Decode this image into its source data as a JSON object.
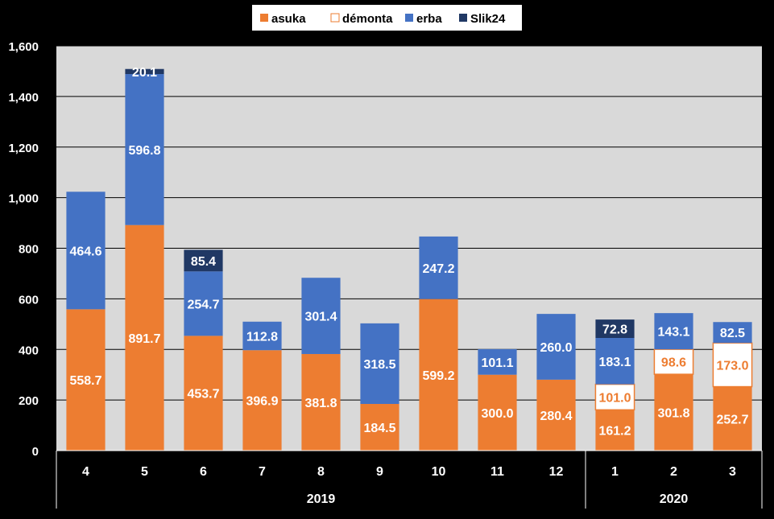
{
  "chart_data": {
    "type": "bar",
    "stacked": true,
    "categories": [
      "4",
      "5",
      "6",
      "7",
      "8",
      "9",
      "10",
      "11",
      "12",
      "1",
      "2",
      "3"
    ],
    "groups": [
      {
        "label": "2019",
        "categories": [
          "4",
          "5",
          "6",
          "7",
          "8",
          "9",
          "10",
          "11",
          "12"
        ]
      },
      {
        "label": "2020",
        "categories": [
          "1",
          "2",
          "3"
        ]
      }
    ],
    "series": [
      {
        "name": "asuka",
        "color": "#ED7D31",
        "values": [
          558.7,
          891.7,
          453.7,
          396.9,
          381.8,
          184.5,
          599.2,
          300.0,
          280.4,
          161.2,
          301.8,
          252.7
        ],
        "labels": [
          "558.7",
          "891.7",
          "453.7",
          "396.9",
          "381.8",
          "184.5",
          "599.2",
          "300.0",
          "280.4",
          "161.2",
          "301.8",
          "252.7"
        ]
      },
      {
        "name": "démonta",
        "color": "#FFFFFF",
        "stroke": "#ED7D31",
        "label_color": "#ED7D31",
        "values": [
          0,
          0,
          0,
          0,
          0,
          0,
          0,
          0,
          0,
          101.0,
          98.6,
          173.0
        ],
        "labels": [
          "",
          "",
          "",
          "",
          "",
          "",
          "",
          "",
          "",
          "101.0",
          "98.6",
          "173.0"
        ]
      },
      {
        "name": "erba",
        "color": "#4472C4",
        "values": [
          464.6,
          596.8,
          254.7,
          112.8,
          301.4,
          318.5,
          247.2,
          101.1,
          260.0,
          183.1,
          143.1,
          82.5
        ],
        "labels": [
          "464.6",
          "596.8",
          "254.7",
          "112.8",
          "301.4",
          "318.5",
          "247.2",
          "101.1",
          "260.0",
          "183.1",
          "143.1",
          "82.5"
        ]
      },
      {
        "name": "Slik24",
        "color": "#203864",
        "values": [
          0,
          20.1,
          85.4,
          0,
          0,
          0,
          0,
          0,
          0,
          72.8,
          0,
          0
        ],
        "labels": [
          "",
          "20.1",
          "85.4",
          "",
          "",
          "",
          "",
          "",
          "",
          "72.8",
          "",
          ""
        ]
      }
    ],
    "ylim": [
      0,
      1600
    ],
    "yticks": [
      0,
      200,
      400,
      600,
      800,
      1000,
      1200,
      1400,
      1600
    ],
    "ytick_labels": [
      "0",
      "200",
      "400",
      "600",
      "800",
      "1,000",
      "1,200",
      "1,400",
      "1,600"
    ],
    "grid": true,
    "legend_position": "top",
    "plot_background": "#D9D9D9",
    "title": "",
    "xlabel": "",
    "ylabel": ""
  }
}
